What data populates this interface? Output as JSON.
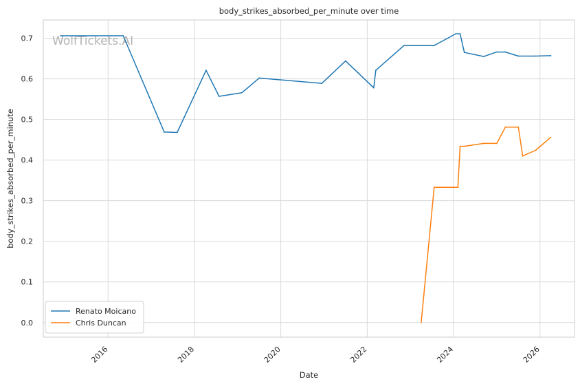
{
  "chart_data": {
    "type": "line",
    "title": "body_strikes_absorbed_per_minute over time",
    "xlabel": "Date",
    "ylabel": "body_strikes_absorbed_per_minute",
    "watermark": "WolfTickets.AI",
    "xlim": [
      2014.5,
      2026.8
    ],
    "ylim": [
      -0.036,
      0.745
    ],
    "x_ticks": [
      2016,
      2018,
      2020,
      2022,
      2024,
      2026
    ],
    "y_ticks": [
      0.0,
      0.1,
      0.2,
      0.3,
      0.4,
      0.5,
      0.6,
      0.7
    ],
    "y_tick_labels": [
      "0.0",
      "0.1",
      "0.2",
      "0.3",
      "0.4",
      "0.5",
      "0.6",
      "0.7"
    ],
    "grid": true,
    "legend_position": "lower-left",
    "series": [
      {
        "name": "Renato Moicano",
        "color": "#1f77b4",
        "x": [
          2014.9,
          2016.35,
          2017.3,
          2017.6,
          2018.27,
          2018.57,
          2019.1,
          2019.5,
          2020.95,
          2021.5,
          2022.15,
          2022.2,
          2022.85,
          2023.55,
          2024.05,
          2024.15,
          2024.25,
          2024.7,
          2025.0,
          2025.2,
          2025.5,
          2025.9,
          2026.25
        ],
        "y": [
          0.706,
          0.706,
          0.469,
          0.468,
          0.621,
          0.557,
          0.566,
          0.602,
          0.589,
          0.644,
          0.578,
          0.621,
          0.682,
          0.682,
          0.711,
          0.711,
          0.665,
          0.655,
          0.666,
          0.666,
          0.656,
          0.656,
          0.657
        ]
      },
      {
        "name": "Chris Duncan",
        "color": "#ff7f0e",
        "x": [
          2023.25,
          2023.55,
          2024.1,
          2024.15,
          2024.25,
          2024.7,
          2025.0,
          2025.2,
          2025.5,
          2025.6,
          2025.9,
          2026.25
        ],
        "y": [
          0.0,
          0.333,
          0.333,
          0.434,
          0.434,
          0.441,
          0.441,
          0.481,
          0.481,
          0.41,
          0.424,
          0.456
        ]
      }
    ]
  }
}
